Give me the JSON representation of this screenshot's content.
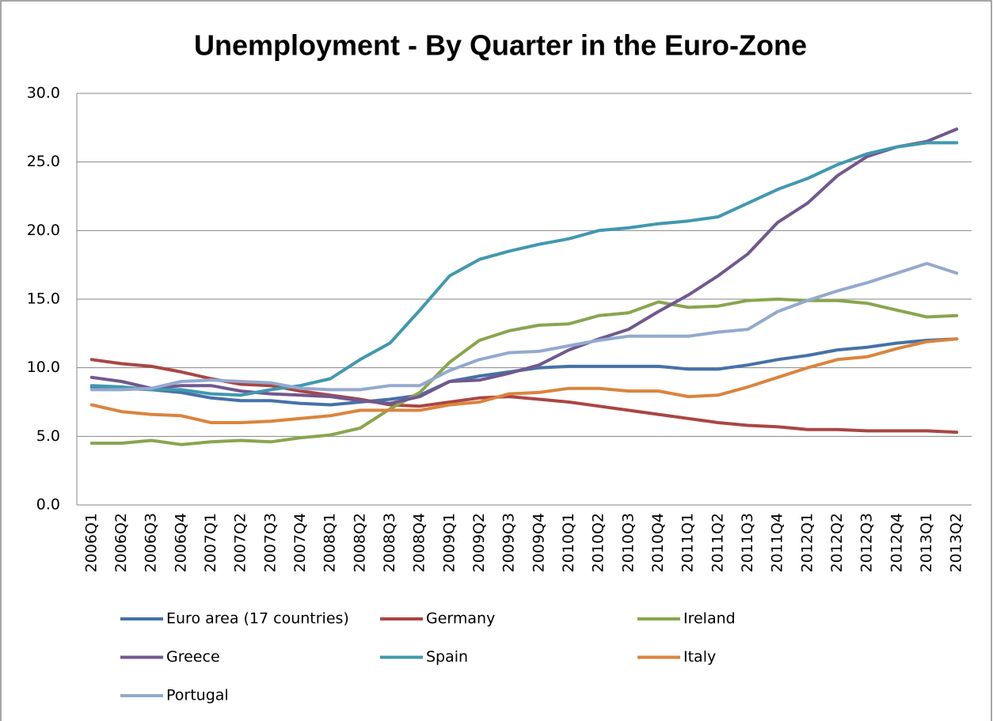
{
  "chart_data": {
    "type": "line",
    "title": "Unemployment - By Quarter in the Euro-Zone",
    "categories": [
      "2006Q1",
      "2006Q2",
      "2006Q3",
      "2006Q4",
      "2007Q1",
      "2007Q2",
      "2007Q3",
      "2007Q4",
      "2008Q1",
      "2008Q2",
      "2008Q3",
      "2008Q4",
      "2009Q1",
      "2009Q2",
      "2009Q3",
      "2009Q4",
      "2010Q1",
      "2010Q2",
      "2010Q3",
      "2010Q4",
      "2011Q1",
      "2011Q2",
      "2011Q3",
      "2011Q4",
      "2012Q1",
      "2012Q2",
      "2012Q3",
      "2012Q4",
      "2013Q1",
      "2013Q2"
    ],
    "series": [
      {
        "name": "Euro area (17 countries)",
        "color": "#4572a7",
        "values": [
          8.6,
          8.5,
          8.4,
          8.2,
          7.8,
          7.6,
          7.6,
          7.4,
          7.3,
          7.5,
          7.7,
          8.0,
          9.0,
          9.4,
          9.7,
          10.0,
          10.1,
          10.1,
          10.1,
          10.1,
          9.9,
          9.9,
          10.2,
          10.6,
          10.9,
          11.3,
          11.5,
          11.8,
          12.0,
          12.1
        ]
      },
      {
        "name": "Germany",
        "color": "#aa4643",
        "values": [
          10.6,
          10.3,
          10.1,
          9.7,
          9.2,
          8.8,
          8.7,
          8.3,
          8.0,
          7.7,
          7.3,
          7.2,
          7.5,
          7.8,
          7.9,
          7.7,
          7.5,
          7.2,
          6.9,
          6.6,
          6.3,
          6.0,
          5.8,
          5.7,
          5.5,
          5.5,
          5.4,
          5.4,
          5.4,
          5.3
        ]
      },
      {
        "name": "Ireland",
        "color": "#89a54e",
        "values": [
          4.5,
          4.5,
          4.7,
          4.4,
          4.6,
          4.7,
          4.6,
          4.9,
          5.1,
          5.6,
          7.0,
          8.2,
          10.4,
          12.0,
          12.7,
          13.1,
          13.2,
          13.8,
          14.0,
          14.8,
          14.4,
          14.5,
          14.9,
          15.0,
          14.9,
          14.9,
          14.7,
          14.2,
          13.7,
          13.8
        ]
      },
      {
        "name": "Greece",
        "color": "#71588f",
        "values": [
          9.3,
          9.0,
          8.5,
          8.7,
          8.7,
          8.3,
          8.1,
          8.0,
          7.9,
          7.6,
          7.4,
          7.9,
          9.0,
          9.1,
          9.6,
          10.2,
          11.3,
          12.1,
          12.8,
          14.1,
          15.3,
          16.7,
          18.3,
          20.6,
          22.0,
          24.0,
          25.4,
          26.1,
          26.5,
          27.4
        ]
      },
      {
        "name": "Spain",
        "color": "#4198af",
        "values": [
          8.7,
          8.6,
          8.4,
          8.4,
          8.1,
          8.0,
          8.4,
          8.7,
          9.2,
          10.6,
          11.8,
          14.2,
          16.7,
          17.9,
          18.5,
          19.0,
          19.4,
          20.0,
          20.2,
          20.5,
          20.7,
          21.0,
          22.0,
          23.0,
          23.8,
          24.8,
          25.6,
          26.1,
          26.4,
          26.4
        ]
      },
      {
        "name": "Italy",
        "color": "#db843d",
        "values": [
          7.3,
          6.8,
          6.6,
          6.5,
          6.0,
          6.0,
          6.1,
          6.3,
          6.5,
          6.9,
          6.9,
          6.9,
          7.3,
          7.5,
          8.1,
          8.2,
          8.5,
          8.5,
          8.3,
          8.3,
          7.9,
          8.0,
          8.6,
          9.3,
          10.0,
          10.6,
          10.8,
          11.4,
          11.9,
          12.1
        ]
      },
      {
        "name": "Portugal",
        "color": "#93a9cf",
        "values": [
          8.4,
          8.4,
          8.5,
          9.0,
          9.1,
          9.0,
          8.9,
          8.5,
          8.4,
          8.4,
          8.7,
          8.7,
          9.8,
          10.6,
          11.1,
          11.2,
          11.6,
          12.0,
          12.3,
          12.3,
          12.3,
          12.6,
          12.8,
          14.1,
          14.9,
          15.6,
          16.2,
          16.9,
          17.6,
          16.9
        ]
      }
    ],
    "ylim": [
      0,
      30
    ],
    "yticks": [
      {
        "value": 0,
        "label": "0.0"
      },
      {
        "value": 5,
        "label": "5.0"
      },
      {
        "value": 10,
        "label": "10.0"
      },
      {
        "value": 15,
        "label": "15.0"
      },
      {
        "value": 20,
        "label": "20.0"
      },
      {
        "value": 25,
        "label": "25.0"
      },
      {
        "value": 30,
        "label": "30.0"
      }
    ],
    "grid": true,
    "legend": "bottom"
  }
}
